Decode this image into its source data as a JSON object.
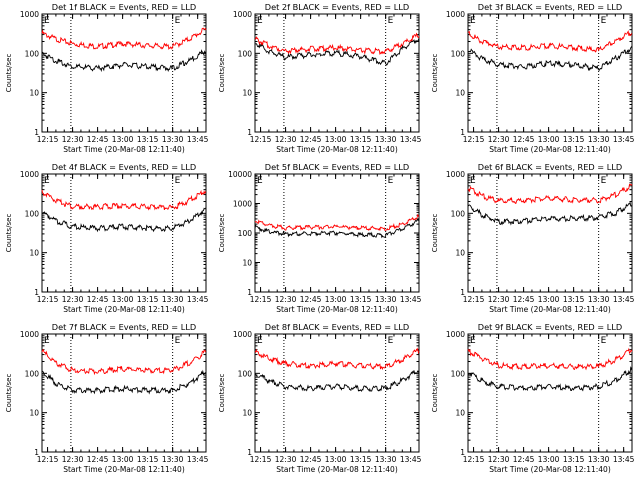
{
  "chart_data": [
    {
      "type": "line",
      "title": "Det 1f BLACK = Events, RED = LLD",
      "xlabel": "Start Time (20-Mar-08 12:11:40)",
      "ylabel": "Counts/sec",
      "yscale": "log",
      "ylim": [
        1,
        1000
      ],
      "xlim": [
        "12:11:40",
        "13:50:00"
      ],
      "xticks": [
        "12:15",
        "12:30",
        "12:45",
        "13:00",
        "13:15",
        "13:30",
        "13:45"
      ],
      "yticks": [
        "1",
        "10",
        "100",
        "1000"
      ],
      "vlines": [
        "12:29:00",
        "13:30:00"
      ],
      "annotation": "E",
      "series": [
        {
          "color": "#ff0000",
          "x": [
            "12:11:40",
            "12:20",
            "12:30",
            "12:45",
            "13:00",
            "13:15",
            "13:30",
            "13:40",
            "13:50"
          ],
          "values": [
            350,
            250,
            190,
            160,
            190,
            170,
            160,
            250,
            450
          ]
        },
        {
          "color": "#000000",
          "x": [
            "12:11:40",
            "12:20",
            "12:30",
            "12:45",
            "13:00",
            "13:15",
            "13:30",
            "13:40",
            "13:50"
          ],
          "values": [
            110,
            70,
            50,
            45,
            55,
            50,
            45,
            70,
            130
          ]
        }
      ]
    },
    {
      "type": "line",
      "title": "Det 2f BLACK = Events, RED = LLD",
      "xlabel": "Start Time (20-Mar-08 12:11:40)",
      "ylabel": "Counts/sec",
      "yscale": "log",
      "ylim": [
        1,
        1000
      ],
      "xlim": [
        "12:11:40",
        "13:50:00"
      ],
      "xticks": [
        "12:15",
        "12:30",
        "12:45",
        "13:00",
        "13:15",
        "13:30",
        "13:45"
      ],
      "yticks": [
        "1",
        "10",
        "100",
        "1000"
      ],
      "vlines": [
        "12:29:00",
        "13:30:00"
      ],
      "annotation": "E",
      "series": [
        {
          "color": "#ff0000",
          "x": [
            "12:11:40",
            "12:20",
            "12:30",
            "12:45",
            "13:00",
            "13:15",
            "13:30",
            "13:40",
            "13:50"
          ],
          "values": [
            250,
            170,
            125,
            140,
            150,
            130,
            120,
            190,
            320
          ]
        },
        {
          "color": "#000000",
          "x": [
            "12:11:40",
            "12:20",
            "12:30",
            "12:45",
            "13:00",
            "13:15",
            "13:30",
            "13:40",
            "13:50"
          ],
          "values": [
            200,
            120,
            85,
            100,
            110,
            90,
            60,
            140,
            260
          ]
        }
      ]
    },
    {
      "type": "line",
      "title": "Det 3f BLACK = Events, RED = LLD",
      "xlabel": "Start Time (20-Mar-08 12:11:40)",
      "ylabel": "Counts/sec",
      "yscale": "log",
      "ylim": [
        1,
        1000
      ],
      "xlim": [
        "12:11:40",
        "13:50:00"
      ],
      "xticks": [
        "12:15",
        "12:30",
        "12:45",
        "13:00",
        "13:15",
        "13:30",
        "13:45"
      ],
      "yticks": [
        "1",
        "10",
        "100",
        "1000"
      ],
      "vlines": [
        "12:29:00",
        "13:30:00"
      ],
      "annotation": "E",
      "series": [
        {
          "color": "#ff0000",
          "x": [
            "12:11:40",
            "12:20",
            "12:30",
            "12:45",
            "13:00",
            "13:15",
            "13:30",
            "13:40",
            "13:50"
          ],
          "values": [
            350,
            220,
            160,
            150,
            170,
            150,
            130,
            220,
            380
          ]
        },
        {
          "color": "#000000",
          "x": [
            "12:11:40",
            "12:20",
            "12:30",
            "12:45",
            "13:00",
            "13:15",
            "13:30",
            "13:40",
            "13:50"
          ],
          "values": [
            130,
            80,
            55,
            50,
            60,
            55,
            45,
            80,
            150
          ]
        }
      ]
    },
    {
      "type": "line",
      "title": "Det 4f BLACK = Events, RED = LLD",
      "xlabel": "Start Time (20-Mar-08 12:11:40)",
      "ylabel": "Counts/sec",
      "yscale": "log",
      "ylim": [
        1,
        1000
      ],
      "xlim": [
        "12:11:40",
        "13:50:00"
      ],
      "xticks": [
        "12:15",
        "12:30",
        "12:45",
        "13:00",
        "13:15",
        "13:30",
        "13:45"
      ],
      "yticks": [
        "1",
        "10",
        "100",
        "1000"
      ],
      "vlines": [
        "12:29:00",
        "13:30:00"
      ],
      "annotation": "E",
      "series": [
        {
          "color": "#ff0000",
          "x": [
            "12:11:40",
            "12:20",
            "12:30",
            "12:45",
            "13:00",
            "13:15",
            "13:30",
            "13:40",
            "13:50"
          ],
          "values": [
            380,
            230,
            160,
            160,
            170,
            160,
            150,
            230,
            420
          ]
        },
        {
          "color": "#000000",
          "x": [
            "12:11:40",
            "12:20",
            "12:30",
            "12:45",
            "13:00",
            "13:15",
            "13:30",
            "13:40",
            "13:50"
          ],
          "values": [
            120,
            70,
            50,
            45,
            50,
            45,
            45,
            70,
            140
          ]
        }
      ]
    },
    {
      "type": "line",
      "title": "Det 5f BLACK = Events, RED = LLD",
      "xlabel": "Start Time (20-Mar-08 12:11:40)",
      "ylabel": "Counts/sec",
      "yscale": "log",
      "ylim": [
        1,
        10000
      ],
      "xlim": [
        "12:11:40",
        "13:50:00"
      ],
      "xticks": [
        "12:15",
        "12:30",
        "12:45",
        "13:00",
        "13:15",
        "13:30",
        "13:45"
      ],
      "yticks": [
        "1",
        "10",
        "100",
        "1000",
        "10000"
      ],
      "vlines": [
        "12:29:00",
        "13:30:00"
      ],
      "annotation": "E",
      "series": [
        {
          "color": "#ff0000",
          "x": [
            "12:11:40",
            "12:20",
            "12:30",
            "12:45",
            "13:00",
            "13:15",
            "13:30",
            "13:40",
            "13:50"
          ],
          "values": [
            280,
            200,
            160,
            170,
            180,
            160,
            150,
            220,
            400
          ]
        },
        {
          "color": "#000000",
          "x": [
            "12:11:40",
            "12:20",
            "12:30",
            "12:45",
            "13:00",
            "13:15",
            "13:30",
            "13:40",
            "13:50"
          ],
          "values": [
            170,
            120,
            100,
            105,
            110,
            95,
            90,
            150,
            290
          ]
        }
      ]
    },
    {
      "type": "line",
      "title": "Det 6f BLACK = Events, RED = LLD",
      "xlabel": "Start Time (20-Mar-08 12:11:40)",
      "ylabel": "Counts/sec",
      "yscale": "log",
      "ylim": [
        1,
        1000
      ],
      "xlim": [
        "12:11:40",
        "13:50:00"
      ],
      "xticks": [
        "12:15",
        "12:30",
        "12:45",
        "13:00",
        "13:15",
        "13:30",
        "13:45"
      ],
      "yticks": [
        "1",
        "10",
        "100",
        "1000"
      ],
      "vlines": [
        "12:29:00",
        "13:30:00"
      ],
      "annotation": "E",
      "series": [
        {
          "color": "#ff0000",
          "x": [
            "12:11:40",
            "12:20",
            "12:30",
            "12:45",
            "13:00",
            "13:15",
            "13:30",
            "13:40",
            "13:50"
          ],
          "values": [
            480,
            300,
            220,
            230,
            260,
            240,
            230,
            320,
            560
          ]
        },
        {
          "color": "#000000",
          "x": [
            "12:11:40",
            "12:20",
            "12:30",
            "12:45",
            "13:00",
            "13:15",
            "13:30",
            "13:40",
            "13:50"
          ],
          "values": [
            170,
            100,
            65,
            70,
            80,
            80,
            85,
            110,
            190
          ]
        }
      ]
    },
    {
      "type": "line",
      "title": "Det 7f BLACK = Events, RED = LLD",
      "xlabel": "Start Time (20-Mar-08 12:11:40)",
      "ylabel": "Counts/sec",
      "yscale": "log",
      "ylim": [
        1,
        1000
      ],
      "xlim": [
        "12:11:40",
        "13:50:00"
      ],
      "xticks": [
        "12:15",
        "12:30",
        "12:45",
        "13:00",
        "13:15",
        "13:30",
        "13:45"
      ],
      "yticks": [
        "1",
        "10",
        "100",
        "1000"
      ],
      "vlines": [
        "12:29:00",
        "13:30:00"
      ],
      "annotation": "E",
      "series": [
        {
          "color": "#ff0000",
          "x": [
            "12:11:40",
            "12:20",
            "12:30",
            "12:45",
            "13:00",
            "13:15",
            "13:30",
            "13:40",
            "13:50"
          ],
          "values": [
            400,
            200,
            130,
            120,
            140,
            130,
            130,
            200,
            380
          ]
        },
        {
          "color": "#000000",
          "x": [
            "12:11:40",
            "12:20",
            "12:30",
            "12:45",
            "13:00",
            "13:15",
            "13:30",
            "13:40",
            "13:50"
          ],
          "values": [
            120,
            60,
            40,
            40,
            45,
            40,
            40,
            60,
            120
          ]
        }
      ]
    },
    {
      "type": "line",
      "title": "Det 8f BLACK = Events, RED = LLD",
      "xlabel": "Start Time (20-Mar-08 12:11:40)",
      "ylabel": "Counts/sec",
      "yscale": "log",
      "ylim": [
        1,
        1000
      ],
      "xlim": [
        "12:11:40",
        "13:50:00"
      ],
      "xticks": [
        "12:15",
        "12:30",
        "12:45",
        "13:00",
        "13:15",
        "13:30",
        "13:45"
      ],
      "yticks": [
        "1",
        "10",
        "100",
        "1000"
      ],
      "vlines": [
        "12:29:00",
        "13:30:00"
      ],
      "annotation": "E",
      "series": [
        {
          "color": "#ff0000",
          "x": [
            "12:11:40",
            "12:20",
            "12:30",
            "12:45",
            "13:00",
            "13:15",
            "13:30",
            "13:40",
            "13:50"
          ],
          "values": [
            380,
            260,
            190,
            170,
            190,
            170,
            160,
            240,
            430
          ]
        },
        {
          "color": "#000000",
          "x": [
            "12:11:40",
            "12:20",
            "12:30",
            "12:45",
            "13:00",
            "13:15",
            "13:30",
            "13:40",
            "13:50"
          ],
          "values": [
            110,
            70,
            50,
            45,
            50,
            45,
            45,
            70,
            140
          ]
        }
      ]
    },
    {
      "type": "line",
      "title": "Det 9f BLACK = Events, RED = LLD",
      "xlabel": "Start Time (20-Mar-08 12:11:40)",
      "ylabel": "Counts/sec",
      "yscale": "log",
      "ylim": [
        1,
        1000
      ],
      "xlim": [
        "12:11:40",
        "13:50:00"
      ],
      "xticks": [
        "12:15",
        "12:30",
        "12:45",
        "13:00",
        "13:15",
        "13:30",
        "13:45"
      ],
      "yticks": [
        "1",
        "10",
        "100",
        "1000"
      ],
      "vlines": [
        "12:29:00",
        "13:30:00"
      ],
      "annotation": "E",
      "series": [
        {
          "color": "#ff0000",
          "x": [
            "12:11:40",
            "12:20",
            "12:30",
            "12:45",
            "13:00",
            "13:15",
            "13:30",
            "13:40",
            "13:50"
          ],
          "values": [
            400,
            260,
            170,
            160,
            170,
            160,
            160,
            240,
            430
          ]
        },
        {
          "color": "#000000",
          "x": [
            "12:11:40",
            "12:20",
            "12:30",
            "12:45",
            "13:00",
            "13:15",
            "13:30",
            "13:40",
            "13:50"
          ],
          "values": [
            120,
            70,
            50,
            45,
            50,
            45,
            50,
            70,
            140
          ]
        }
      ]
    }
  ]
}
